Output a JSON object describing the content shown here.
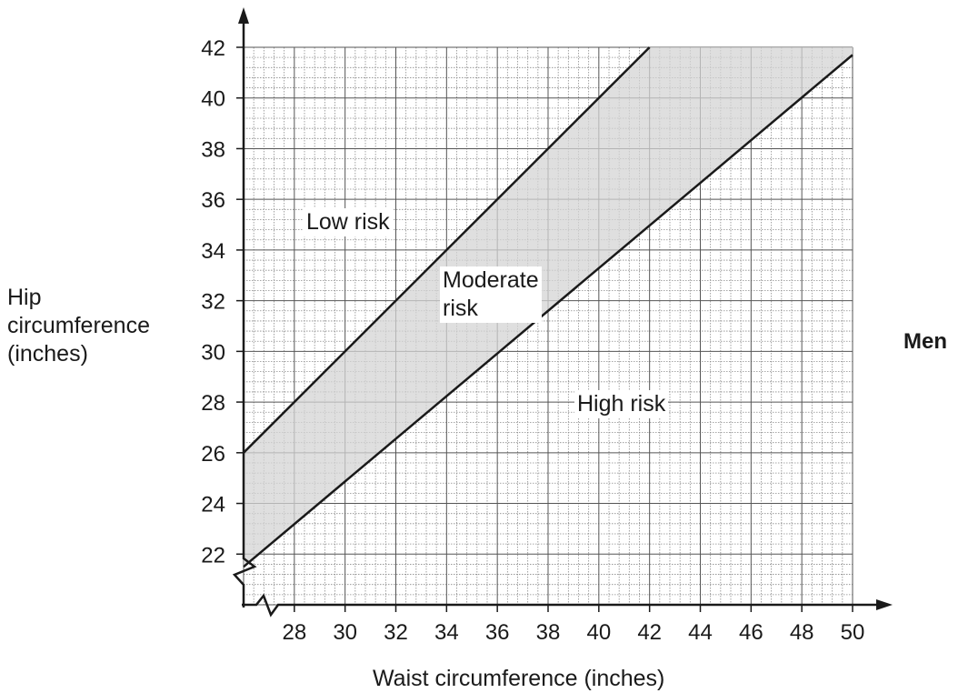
{
  "chart_data": {
    "type": "area",
    "title": "",
    "xlabel": "Waist circumference (inches)",
    "ylabel_lines": [
      "Hip",
      "circumference",
      "(inches)"
    ],
    "side_label": "Men",
    "xlim": [
      26,
      50
    ],
    "ylim": [
      20,
      42
    ],
    "x_ticks": [
      28,
      30,
      32,
      34,
      36,
      38,
      40,
      42,
      44,
      46,
      48,
      50
    ],
    "y_ticks": [
      22,
      24,
      26,
      28,
      30,
      32,
      34,
      36,
      38,
      40,
      42
    ],
    "grid": true,
    "axis_breaks": true,
    "boundaries": [
      {
        "x": [
          26,
          42
        ],
        "y": [
          26,
          42
        ]
      },
      {
        "x": [
          26,
          50
        ],
        "y": [
          21.5,
          41.7
        ]
      }
    ],
    "regions": [
      {
        "lines": [
          "Low risk"
        ]
      },
      {
        "lines": [
          "Moderate",
          "risk"
        ]
      },
      {
        "lines": [
          "High risk"
        ]
      }
    ]
  }
}
